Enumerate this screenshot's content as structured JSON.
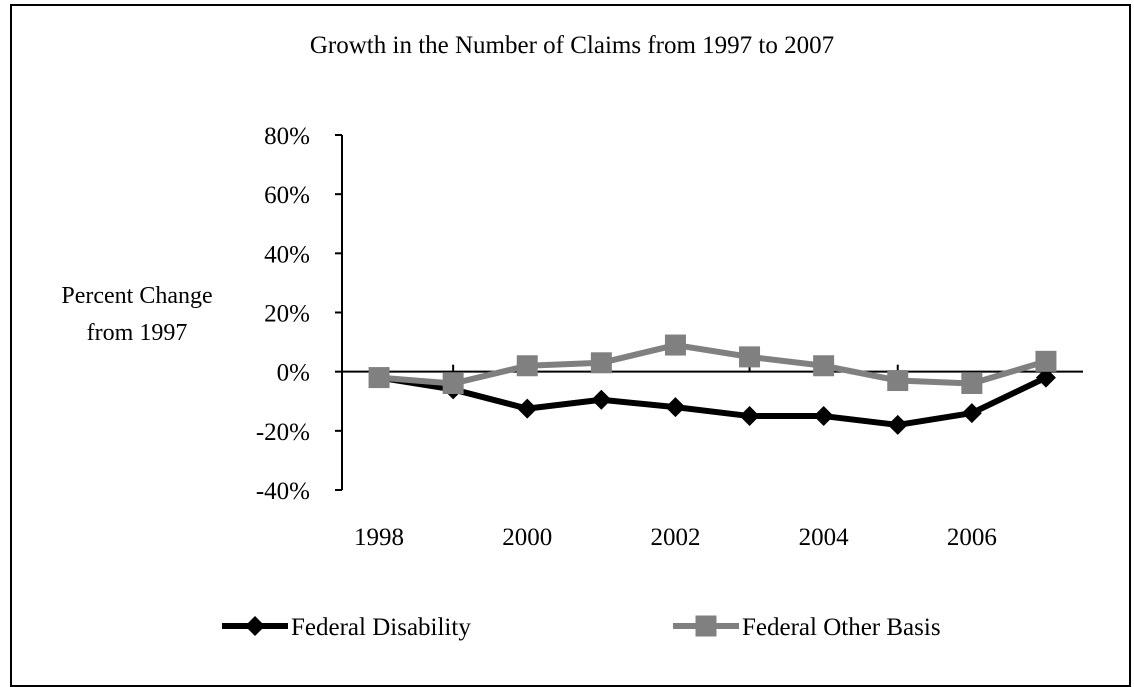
{
  "chart_data": {
    "type": "line",
    "title": "Growth in the Number of Claims from 1997 to 2007",
    "ylabel": [
      "Percent Change",
      "from 1997"
    ],
    "xlabel": "",
    "x": [
      1998,
      1999,
      2000,
      2001,
      2002,
      2003,
      2004,
      2005,
      2006,
      2007
    ],
    "x_tick_labels": [
      "1998",
      "2000",
      "2002",
      "2004",
      "2006"
    ],
    "y_tick_labels": [
      "80%",
      "60%",
      "40%",
      "20%",
      "0%",
      "-20%",
      "-40%"
    ],
    "y_ticks": [
      80,
      60,
      40,
      20,
      0,
      -20,
      -40
    ],
    "ylim": [
      -40,
      80
    ],
    "series": [
      {
        "name": "Federal Disability",
        "color": "#000000",
        "marker": "diamond",
        "values": [
          -2,
          -6,
          -12.5,
          -9.5,
          -12,
          -15,
          -15,
          -18,
          -14,
          -2
        ]
      },
      {
        "name": "Federal Other Basis",
        "color": "#808080",
        "marker": "square",
        "values": [
          -2,
          -4,
          2,
          3,
          9,
          5,
          2,
          -3,
          -4,
          3.5
        ]
      }
    ],
    "legend": "bottom",
    "grid": false
  }
}
